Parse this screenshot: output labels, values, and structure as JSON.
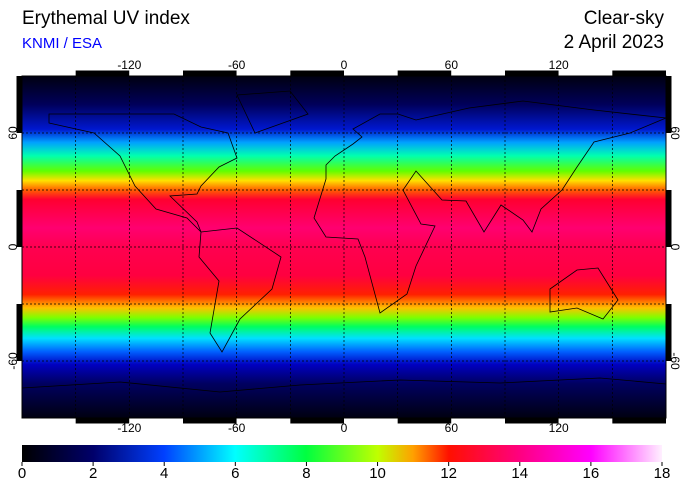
{
  "header": {
    "title": "Erythemal UV index",
    "source": "KNMI / ESA",
    "condition": "Clear-sky",
    "date": "2 April 2023"
  },
  "map": {
    "xlim": [
      -180,
      180
    ],
    "ylim": [
      -90,
      90
    ],
    "xticks": [
      -120,
      -60,
      0,
      60,
      120
    ],
    "yticks": [
      60,
      0,
      -60
    ]
  },
  "colorbar": {
    "lim": [
      0,
      18
    ],
    "ticks": [
      0,
      2,
      4,
      6,
      8,
      10,
      12,
      14,
      16,
      18
    ]
  }
}
